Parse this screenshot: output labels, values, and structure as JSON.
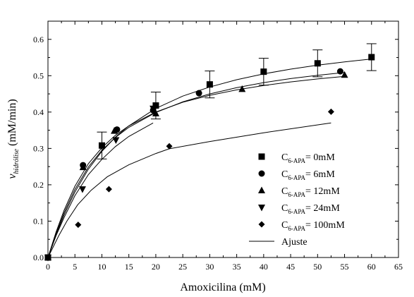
{
  "chart_data": {
    "type": "scatter",
    "xlabel": "Amoxicilina (mM)",
    "ylabel_main": "v",
    "ylabel_sub": "hidrólise",
    "ylabel_unit": "(mM/min)",
    "xlim": [
      0,
      65
    ],
    "ylim": [
      0,
      0.65
    ],
    "xticks": [
      0,
      5,
      10,
      15,
      20,
      25,
      30,
      35,
      40,
      45,
      50,
      55,
      60,
      65
    ],
    "yticks": [
      0.0,
      0.1,
      0.2,
      0.3,
      0.4,
      0.5,
      0.6
    ],
    "ytick_labels": [
      "0.0",
      "0.1",
      "0.2",
      "0.3",
      "0.4",
      "0.5",
      "0.6"
    ],
    "grid": false,
    "legend_position": "lower-right",
    "series": [
      {
        "name": "C6-APA= 0mM",
        "legend_prefix": "C",
        "legend_sub": "6-APA",
        "legend_suffix": "= 0mM",
        "marker": "square",
        "x": [
          0,
          10,
          20,
          30,
          40,
          50,
          60
        ],
        "y": [
          0.0,
          0.308,
          0.418,
          0.476,
          0.511,
          0.534,
          0.551
        ],
        "err": [
          0,
          0.037,
          0.037,
          0.037,
          0.037,
          0.037,
          0.037
        ],
        "fit_x": [
          0,
          1.5,
          3,
          5,
          7.5,
          10,
          12.5,
          15,
          20,
          25,
          30,
          35,
          40,
          45,
          50,
          55,
          60
        ],
        "fit_y": [
          0.0,
          0.062,
          0.117,
          0.18,
          0.243,
          0.292,
          0.331,
          0.362,
          0.41,
          0.444,
          0.469,
          0.489,
          0.505,
          0.518,
          0.529,
          0.538,
          0.546
        ]
      },
      {
        "name": "C6-APA= 6mM",
        "legend_prefix": "C",
        "legend_sub": "6-APA",
        "legend_suffix": "= 6mM",
        "marker": "circle",
        "x": [
          0,
          6.5,
          12.8,
          19.5,
          28.0,
          54.2
        ],
        "y": [
          0.0,
          0.254,
          0.352,
          0.405,
          0.452,
          0.512
        ],
        "fit_x": [
          0,
          1.5,
          3,
          5,
          7.5,
          10,
          12.5,
          15,
          20,
          25,
          30,
          35,
          40,
          45,
          50,
          55
        ],
        "fit_y": [
          0.0,
          0.07,
          0.13,
          0.196,
          0.258,
          0.302,
          0.336,
          0.362,
          0.4,
          0.427,
          0.446,
          0.461,
          0.473,
          0.483,
          0.491,
          0.498
        ]
      },
      {
        "name": "C6-APA= 12mM",
        "legend_prefix": "C",
        "legend_sub": "6-APA",
        "legend_suffix": "= 12mM",
        "marker": "triangle-up",
        "x": [
          0,
          6.5,
          12.3,
          20.0,
          36.0,
          55.0
        ],
        "y": [
          0.0,
          0.248,
          0.348,
          0.396,
          0.463,
          0.502
        ],
        "fit_x": [
          0,
          1.5,
          3,
          5,
          7.5,
          10,
          12.5,
          15,
          20,
          25,
          30,
          35,
          40,
          45,
          50,
          55
        ],
        "fit_y": [
          0.0,
          0.066,
          0.123,
          0.187,
          0.249,
          0.295,
          0.33,
          0.358,
          0.399,
          0.428,
          0.45,
          0.467,
          0.481,
          0.492,
          0.501,
          0.509
        ]
      },
      {
        "name": "C6-APA= 24mM",
        "legend_prefix": "C",
        "legend_sub": "6-APA",
        "legend_suffix": "= 24mM",
        "marker": "triangle-down",
        "x": [
          0,
          6.4,
          12.6,
          19.5
        ],
        "y": [
          0.0,
          0.188,
          0.323,
          0.41
        ],
        "fit_x": [
          0,
          1.5,
          3,
          5,
          7.5,
          10,
          12.5,
          15,
          19.5
        ],
        "fit_y": [
          0.0,
          0.06,
          0.11,
          0.17,
          0.228,
          0.27,
          0.305,
          0.333,
          0.37
        ]
      },
      {
        "name": "C6-APA= 100mM",
        "legend_prefix": "C",
        "legend_sub": "6-APA",
        "legend_suffix": "= 100mM",
        "marker": "diamond",
        "x": [
          0,
          5.6,
          11.3,
          22.5,
          52.5
        ],
        "y": [
          0.0,
          0.09,
          0.188,
          0.306,
          0.401
        ],
        "fit_x": [
          0,
          2,
          3.5,
          5.5,
          8,
          11,
          15,
          20,
          22.5,
          30,
          40,
          52.5
        ],
        "fit_y": [
          0.0,
          0.06,
          0.1,
          0.145,
          0.185,
          0.222,
          0.255,
          0.286,
          0.299,
          0.319,
          0.343,
          0.37
        ]
      }
    ],
    "fit_legend_label": "Ajuste"
  }
}
